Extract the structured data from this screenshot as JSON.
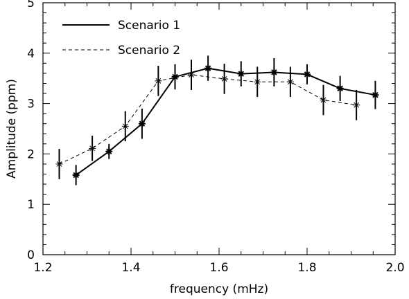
{
  "chart_data": {
    "type": "line",
    "xlabel": "frequency (mHz)",
    "ylabel": "Amplitude (ppm)",
    "xlim": [
      1.2,
      2.0
    ],
    "ylim": [
      0,
      5
    ],
    "xticks": [
      "1.2",
      "1.4",
      "1.6",
      "1.8",
      "2.0"
    ],
    "yticks": [
      "0",
      "1",
      "2",
      "3",
      "4",
      "5"
    ],
    "grid": false,
    "legend_position": "top-left",
    "series": [
      {
        "name": "Scenario 1",
        "style": "solid",
        "color": "#000000",
        "x": [
          1.275,
          1.35,
          1.425,
          1.5,
          1.575,
          1.65,
          1.725,
          1.8,
          1.875,
          1.955
        ],
        "y": [
          1.58,
          2.05,
          2.6,
          3.53,
          3.7,
          3.59,
          3.62,
          3.58,
          3.3,
          3.17
        ],
        "err": [
          0.2,
          0.15,
          0.3,
          0.25,
          0.25,
          0.25,
          0.28,
          0.2,
          0.25,
          0.28
        ]
      },
      {
        "name": "Scenario 2",
        "style": "dashed",
        "color": "#000000",
        "x": [
          1.237,
          1.312,
          1.387,
          1.462,
          1.537,
          1.612,
          1.687,
          1.762,
          1.837,
          1.912
        ],
        "y": [
          1.8,
          2.11,
          2.55,
          3.45,
          3.57,
          3.49,
          3.43,
          3.43,
          3.07,
          2.97
        ],
        "err": [
          0.3,
          0.25,
          0.3,
          0.3,
          0.3,
          0.3,
          0.3,
          0.3,
          0.3,
          0.3
        ]
      }
    ]
  }
}
